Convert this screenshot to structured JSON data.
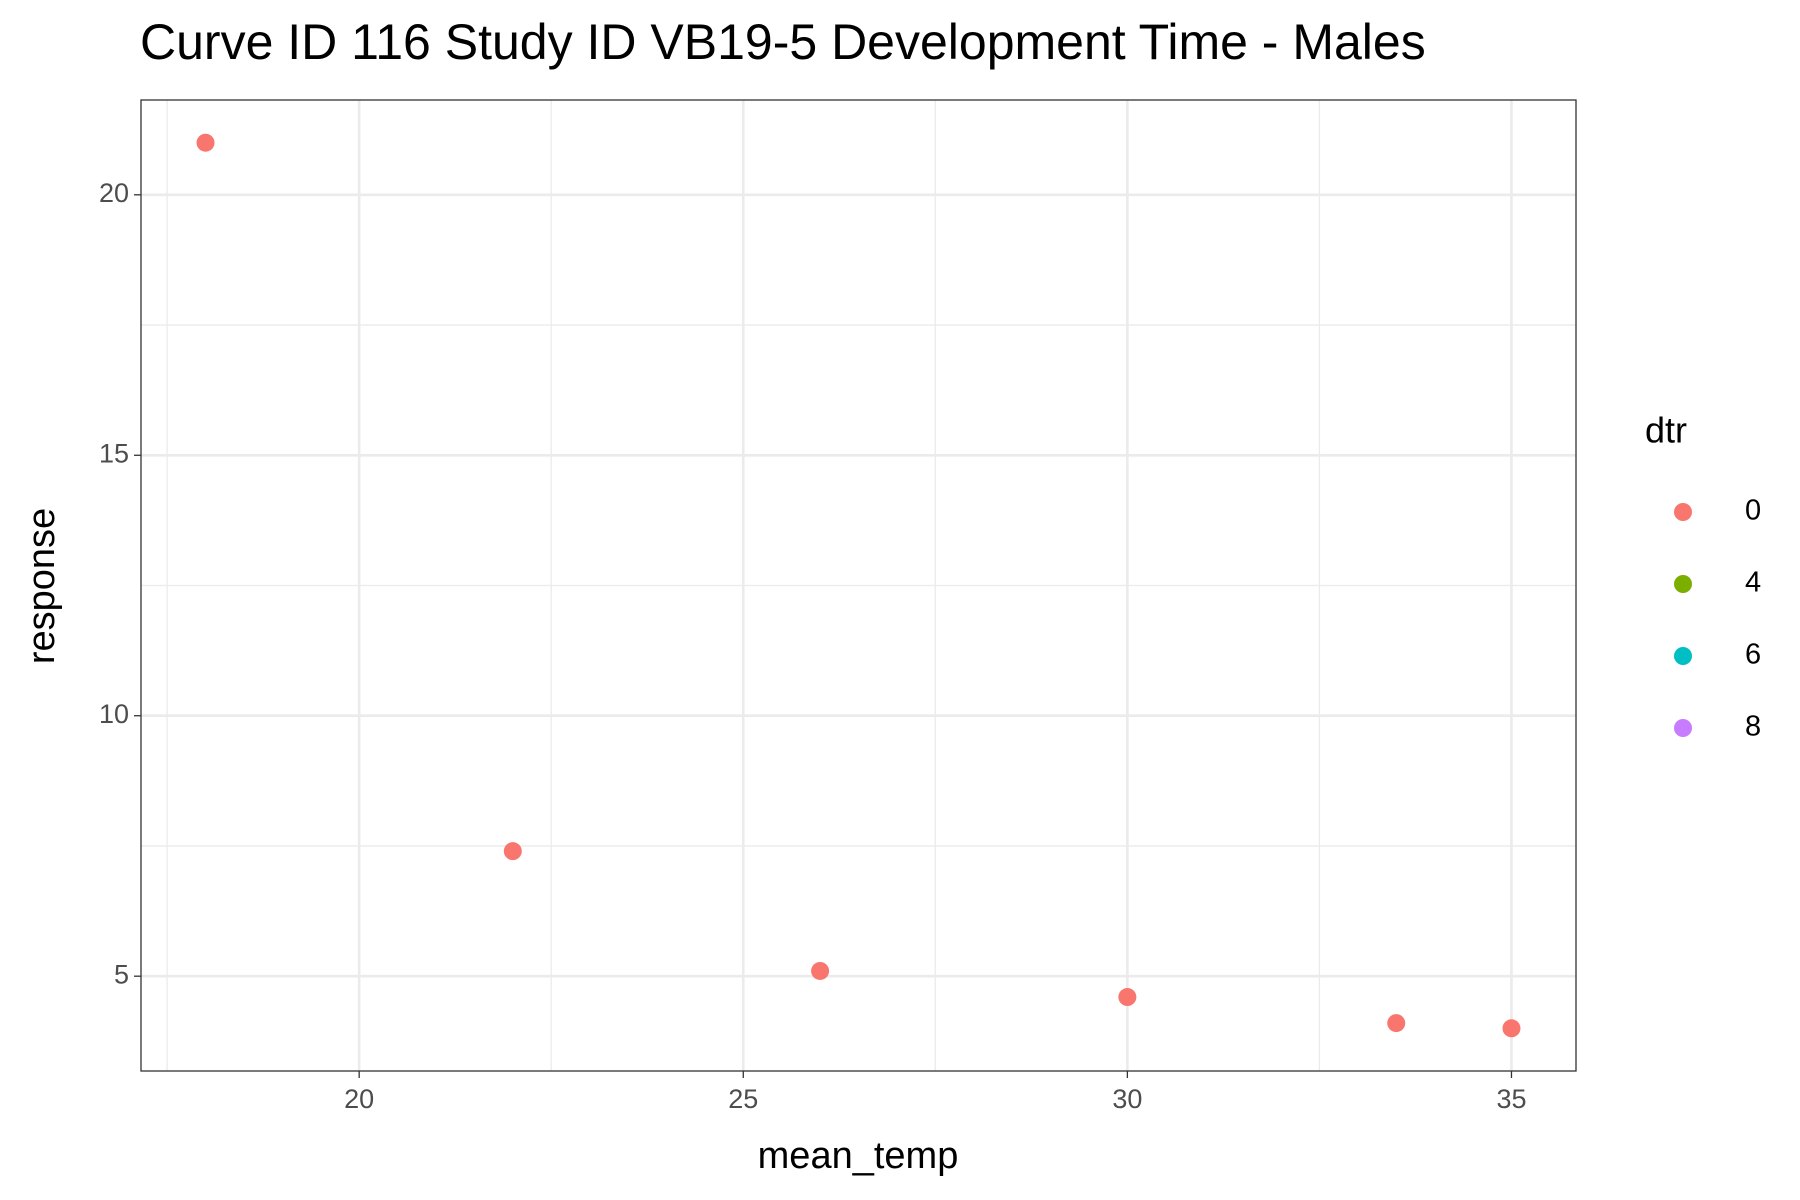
{
  "chart_data": {
    "type": "scatter",
    "title": "Curve ID 116 Study ID VB19-5 Development Time - Males",
    "x_label": "mean_temp",
    "y_label": "response",
    "legend_title": "dtr",
    "legend_position": "right",
    "series": [
      {
        "name": "0",
        "color": "#f8766d",
        "x": [
          18,
          22,
          26,
          30,
          33.5,
          35
        ],
        "values": [
          21,
          7.4,
          5.1,
          4.6,
          4.1,
          4.0
        ]
      },
      {
        "name": "4",
        "color": "#7cae00",
        "x": [],
        "values": []
      },
      {
        "name": "6",
        "color": "#00bfc4",
        "x": [],
        "values": []
      },
      {
        "name": "8",
        "color": "#c77cff",
        "x": [],
        "values": []
      }
    ],
    "xlim": [
      17.16,
      35.84
    ],
    "xticks": [
      20,
      25,
      30,
      35
    ],
    "ylim": [
      3.18,
      21.82
    ],
    "yticks": [
      5,
      10,
      15,
      20
    ],
    "grid": true
  }
}
